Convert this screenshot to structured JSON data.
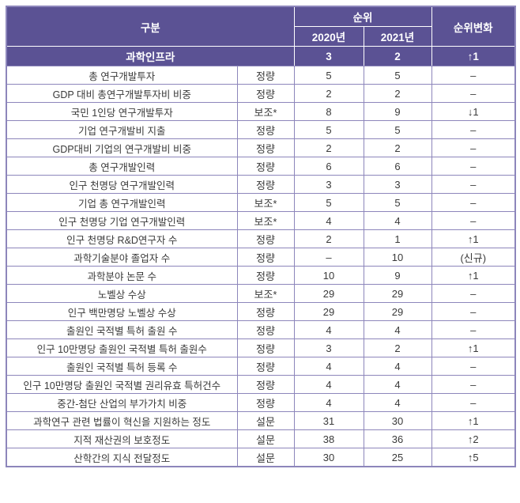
{
  "colors": {
    "header_bg": "#5b5294",
    "grid": "#8d86bb",
    "text": "#3a3a3a",
    "header_text": "#ffffff"
  },
  "chart_data": {
    "type": "table",
    "header": {
      "col_group": "구분",
      "rank_group": "순위",
      "year_2020": "2020년",
      "year_2021": "2021년",
      "rank_change": "순위변화"
    },
    "category_row": {
      "label": "과학인프라",
      "rank_2020": "3",
      "rank_2021": "2",
      "change": "↑1"
    },
    "row_columns": [
      "name",
      "type",
      "r2020",
      "r2021",
      "change"
    ],
    "rows": [
      {
        "name": "총 연구개발투자",
        "type": "정량",
        "r2020": "5",
        "r2021": "5",
        "change": "–"
      },
      {
        "name": "GDP 대비 총연구개발투자비 비중",
        "type": "정량",
        "r2020": "2",
        "r2021": "2",
        "change": "–"
      },
      {
        "name": "국민 1인당 연구개발투자",
        "type": "보조*",
        "r2020": "8",
        "r2021": "9",
        "change": "↓1"
      },
      {
        "name": "기업 연구개발비 지출",
        "type": "정량",
        "r2020": "5",
        "r2021": "5",
        "change": "–"
      },
      {
        "name": "GDP대비 기업의 연구개발비 비중",
        "type": "정량",
        "r2020": "2",
        "r2021": "2",
        "change": "–"
      },
      {
        "name": "총 연구개발인력",
        "type": "정량",
        "r2020": "6",
        "r2021": "6",
        "change": "–"
      },
      {
        "name": "인구 천명당 연구개발인력",
        "type": "정량",
        "r2020": "3",
        "r2021": "3",
        "change": "–"
      },
      {
        "name": "기업 총 연구개발인력",
        "type": "보조*",
        "r2020": "5",
        "r2021": "5",
        "change": "–"
      },
      {
        "name": "인구 천명당 기업 연구개발인력",
        "type": "보조*",
        "r2020": "4",
        "r2021": "4",
        "change": "–"
      },
      {
        "name": "인구 천명당 R&D연구자 수",
        "type": "정량",
        "r2020": "2",
        "r2021": "1",
        "change": "↑1"
      },
      {
        "name": "과학기술분야 졸업자 수",
        "type": "정량",
        "r2020": "–",
        "r2021": "10",
        "change": "(신규)"
      },
      {
        "name": "과학분야 논문 수",
        "type": "정량",
        "r2020": "10",
        "r2021": "9",
        "change": "↑1"
      },
      {
        "name": "노벨상 수상",
        "type": "보조*",
        "r2020": "29",
        "r2021": "29",
        "change": "–"
      },
      {
        "name": "인구 백만명당 노벨상 수상",
        "type": "정량",
        "r2020": "29",
        "r2021": "29",
        "change": "–"
      },
      {
        "name": "출원인 국적별 특허 출원 수",
        "type": "정량",
        "r2020": "4",
        "r2021": "4",
        "change": "–"
      },
      {
        "name": "인구 10만명당 출원인 국적별 특허 출원수",
        "type": "정량",
        "r2020": "3",
        "r2021": "2",
        "change": "↑1"
      },
      {
        "name": "출원인 국적별 특허 등록 수",
        "type": "정량",
        "r2020": "4",
        "r2021": "4",
        "change": "–"
      },
      {
        "name": "인구 10만명당 출원인 국적별 권리유효 특허건수",
        "type": "정량",
        "r2020": "4",
        "r2021": "4",
        "change": "–"
      },
      {
        "name": "중간-첨단 산업의 부가가치 비중",
        "type": "정량",
        "r2020": "4",
        "r2021": "4",
        "change": "–"
      },
      {
        "name": "과학연구 관련 법률이 혁신을 지원하는 정도",
        "type": "설문",
        "r2020": "31",
        "r2021": "30",
        "change": "↑1"
      },
      {
        "name": "지적 재산권의 보호정도",
        "type": "설문",
        "r2020": "38",
        "r2021": "36",
        "change": "↑2"
      },
      {
        "name": "산학간의 지식 전달정도",
        "type": "설문",
        "r2020": "30",
        "r2021": "25",
        "change": "↑5"
      }
    ]
  }
}
